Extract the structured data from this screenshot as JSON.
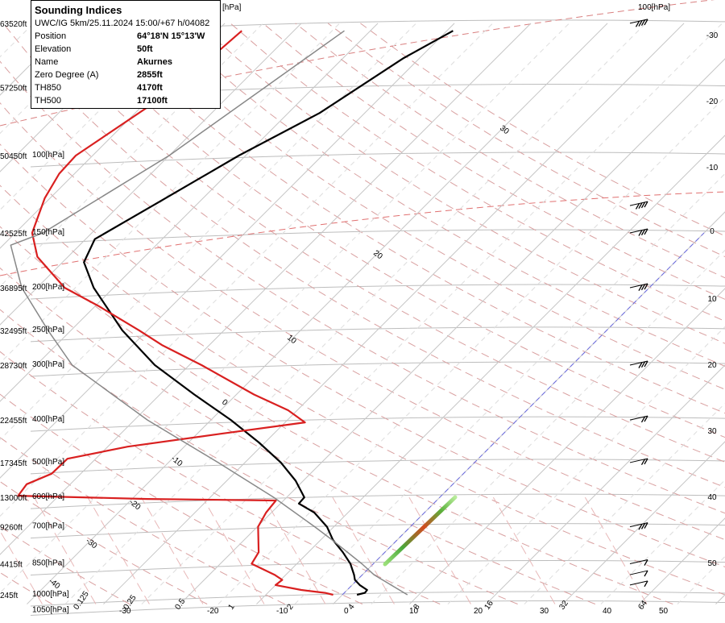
{
  "info": {
    "title": "Sounding Indices",
    "subtitle": "UWC/IG 5km/25.11.2024 15:00/+67 h/04082",
    "rows": [
      {
        "key": "Position",
        "value": "64°18'N 15°13'W"
      },
      {
        "key": "Elevation",
        "value": "50ft"
      },
      {
        "key": "Name",
        "value": "Akurnes"
      },
      {
        "key": "Zero Degree (A)",
        "value": "2855ft"
      },
      {
        "key": "TH850",
        "value": "4170ft"
      },
      {
        "key": "TH500",
        "value": "17100ft"
      }
    ]
  },
  "chart_data": {
    "type": "line",
    "title": "",
    "pressure_levels": [
      {
        "p": 1050,
        "label": "1050[hPa]",
        "alt": ""
      },
      {
        "p": 1000,
        "label": "1000[hPa]",
        "alt": "245ft"
      },
      {
        "p": 850,
        "label": "850[hPa]",
        "alt": "4415ft"
      },
      {
        "p": 700,
        "label": "700[hPa]",
        "alt": "9260ft"
      },
      {
        "p": 600,
        "label": "600[hPa]",
        "alt": "13000ft"
      },
      {
        "p": 500,
        "label": "500[hPa]",
        "alt": "17345ft"
      },
      {
        "p": 400,
        "label": "400[hPa]",
        "alt": "22455ft"
      },
      {
        "p": 300,
        "label": "300[hPa]",
        "alt": "28730ft"
      },
      {
        "p": 250,
        "label": "250[hPa]",
        "alt": "32495ft"
      },
      {
        "p": 200,
        "label": "200[hPa]",
        "alt": "36895ft"
      },
      {
        "p": 150,
        "label": "150[hPa]",
        "alt": "42525ft"
      },
      {
        "p": 100,
        "label": "100[hPa]",
        "alt": "50450ft"
      },
      {
        "p": 70,
        "label": "",
        "alt": "57250ft"
      },
      {
        "p": 50,
        "label": "",
        "alt": "63520ft"
      }
    ],
    "top_labels": [
      "[hPa]",
      "100[hPa]"
    ],
    "bottom_temperature_labels": [
      "-30",
      "-20",
      "-10",
      "0",
      "10",
      "20",
      "30",
      "40",
      "50"
    ],
    "isotherm_labels": [
      "30",
      "20",
      "10",
      "0",
      "-10",
      "-20",
      "-30",
      "-40"
    ],
    "mixing_ratio_labels": [
      "0.125",
      "0.25",
      "0.5",
      "1",
      "2",
      "4",
      "8",
      "16",
      "32",
      "64"
    ],
    "right_labels": [
      "-30",
      "-20",
      "-10",
      "0",
      "10",
      "20",
      "30",
      "40",
      "50"
    ],
    "series": [
      {
        "role": "temperature",
        "color": "#000000",
        "points": [
          [
            1000,
            1.9
          ],
          [
            990,
            2.7
          ],
          [
            975,
            2.6
          ],
          [
            950,
            1.0
          ],
          [
            925,
            -0.3
          ],
          [
            900,
            -1.1
          ],
          [
            850,
            -3.0
          ],
          [
            800,
            -5.5
          ],
          [
            750,
            -8.4
          ],
          [
            700,
            -10.9
          ],
          [
            650,
            -14.4
          ],
          [
            620,
            -17.6
          ],
          [
            600,
            -17.7
          ],
          [
            550,
            -21.0
          ],
          [
            500,
            -25.3
          ],
          [
            450,
            -30.8
          ],
          [
            400,
            -37.4
          ],
          [
            350,
            -45.5
          ],
          [
            300,
            -54.5
          ],
          [
            250,
            -63.3
          ],
          [
            200,
            -72.6
          ],
          [
            175,
            -77.2
          ],
          [
            155,
            -78.8
          ],
          [
            130,
            -75.6
          ],
          [
            100,
            -70.9
          ],
          [
            80,
            -65.9
          ],
          [
            60,
            -62.1
          ],
          [
            52,
            -59.2
          ]
        ]
      },
      {
        "role": "dewpoint",
        "color": "#d92020",
        "points": [
          [
            1000,
            -1.2
          ],
          [
            990,
            -2.5
          ],
          [
            975,
            -6.0
          ],
          [
            950,
            -10.0
          ],
          [
            925,
            -9.8
          ],
          [
            900,
            -11.5
          ],
          [
            850,
            -15.9
          ],
          [
            800,
            -16.5
          ],
          [
            700,
            -19.9
          ],
          [
            650,
            -20.7
          ],
          [
            610,
            -21.0
          ],
          [
            605,
            -38.0
          ],
          [
            595,
            -55.3
          ],
          [
            560,
            -55.7
          ],
          [
            530,
            -53.8
          ],
          [
            490,
            -53.7
          ],
          [
            460,
            -47.4
          ],
          [
            430,
            -36.9
          ],
          [
            405,
            -27.4
          ],
          [
            380,
            -31.2
          ],
          [
            350,
            -37.7
          ],
          [
            300,
            -48.4
          ],
          [
            270,
            -56.2
          ],
          [
            250,
            -61.1
          ],
          [
            220,
            -69.6
          ],
          [
            200,
            -76.4
          ],
          [
            170,
            -84.0
          ],
          [
            150,
            -87.8
          ],
          [
            125,
            -90.7
          ],
          [
            110,
            -92.0
          ],
          [
            100,
            -92.2
          ],
          [
            70,
            -87.9
          ],
          [
            52,
            -86.8
          ]
        ]
      },
      {
        "role": "parcel",
        "color": "#888888",
        "points": [
          [
            1000,
            8.5
          ],
          [
            900,
            1.5
          ],
          [
            850,
            -1.5
          ],
          [
            750,
            -8.5
          ],
          [
            700,
            -12.5
          ],
          [
            600,
            -21.7
          ],
          [
            500,
            -33.5
          ],
          [
            400,
            -48.3
          ],
          [
            300,
            -65.3
          ],
          [
            250,
            -73.0
          ],
          [
            200,
            -82.0
          ],
          [
            160,
            -89.0
          ],
          [
            150,
            -86.4
          ],
          [
            100,
            -80.0
          ],
          [
            70,
            -76.4
          ],
          [
            52,
            -73.4
          ]
        ]
      }
    ],
    "wind_barbs": [
      {
        "p": 950,
        "speed_kt": 10
      },
      {
        "p": 900,
        "speed_kt": 10
      },
      {
        "p": 850,
        "speed_kt": 10
      },
      {
        "p": 700,
        "speed_kt": 25
      },
      {
        "p": 500,
        "speed_kt": 15
      },
      {
        "p": 400,
        "speed_kt": 15
      },
      {
        "p": 300,
        "speed_kt": 30
      },
      {
        "p": 200,
        "speed_kt": 30
      },
      {
        "p": 150,
        "speed_kt": 30
      },
      {
        "p": 130,
        "speed_kt": 35
      },
      {
        "p": 50,
        "speed_kt": 35
      }
    ],
    "colors": {
      "temperature": "#000000",
      "dewpoint": "#d92020",
      "parcel": "#888888",
      "isobar": "#bdbdbd",
      "dry_adiabat": "#d9a0a0",
      "isotherm": "#c7c7c7",
      "zero_isotherm": "#6a6ae0"
    },
    "grid": true
  }
}
